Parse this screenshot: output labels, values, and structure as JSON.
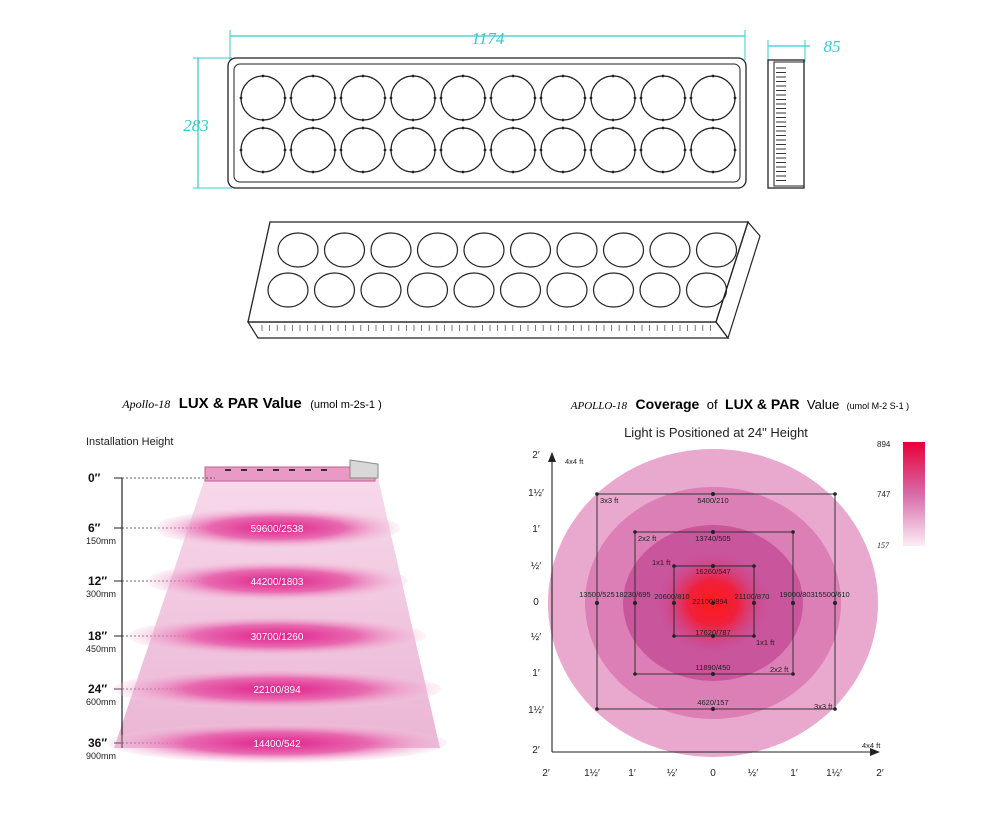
{
  "dimensions": {
    "length": "1174",
    "depth": "85",
    "height": "283"
  },
  "lux_par": {
    "model": "Apollo-18",
    "title_bold": "LUX & PAR Value",
    "unit": "(umol m-2s-1 )",
    "installation_height_label": "Installation Height",
    "rows": [
      {
        "height_in": "0″",
        "height_mm": "",
        "value": ""
      },
      {
        "height_in": "6″",
        "height_mm": "150mm",
        "value": "59600/2538"
      },
      {
        "height_in": "12″",
        "height_mm": "300mm",
        "value": "44200/1803"
      },
      {
        "height_in": "18″",
        "height_mm": "450mm",
        "value": "30700/1260"
      },
      {
        "height_in": "24″",
        "height_mm": "600mm",
        "value": "22100/894"
      },
      {
        "height_in": "36″",
        "height_mm": "900mm",
        "value": "14400/542"
      }
    ]
  },
  "coverage": {
    "model": "APOLLO-18",
    "title_coverage": "Coverage",
    "title_of": "of",
    "title_bold": "LUX & PAR",
    "title_value": "Value",
    "unit": "(umol  M-2 S-1 )",
    "subtitle": "Light is Positioned at 24\" Height",
    "legend": {
      "max": "894",
      "mid": "747",
      "min": "157"
    },
    "boxes": [
      {
        "label": "4x4 ft",
        "label2": "4x4 ft"
      },
      {
        "label": "3x3 ft",
        "label2": "3x3 ft"
      },
      {
        "label": "2x2 ft",
        "label2": "2x2 ft"
      },
      {
        "label": "1x1 ft",
        "label2": "1x1 ft"
      }
    ],
    "readings": {
      "top_3x3": "5400/210",
      "top_2x2": "13740/505",
      "top_1x1": "16260/547",
      "left_3x3": "13500/525",
      "left_2x2": "18230/695",
      "left_1x1": "20600/810",
      "center": "22100/894",
      "right_1x1": "21100/870",
      "right_2x2": "19000/803",
      "right_3x3": "15500/610",
      "bottom_1x1": "17620/787",
      "bottom_2x2": "11890/450",
      "bottom_3x3": "4620/157"
    },
    "axis_labels": [
      "2′",
      "1½′",
      "1′",
      "½′",
      "0",
      "½′",
      "1′",
      "1½′",
      "2′"
    ],
    "y_axis_labels": [
      "2′",
      "1½′",
      "1′",
      "½′",
      "0",
      "½′",
      "1′",
      "1½′",
      "2′"
    ]
  }
}
